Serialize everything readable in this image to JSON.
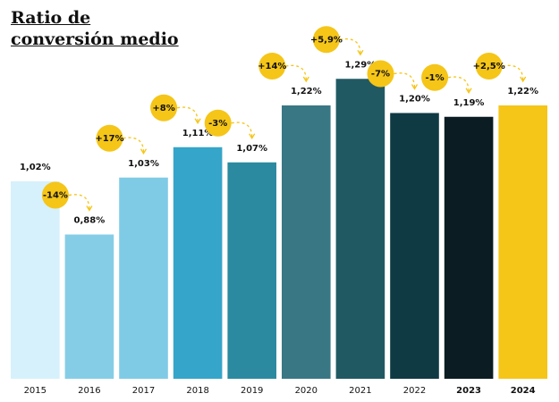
{
  "chart_data": {
    "type": "bar",
    "title": "Ratio de conversión medio",
    "categories": [
      "2015",
      "2016",
      "2017",
      "2018",
      "2019",
      "2020",
      "2021",
      "2022",
      "2023",
      "2024"
    ],
    "values": [
      1.02,
      0.88,
      1.03,
      1.11,
      1.07,
      1.22,
      1.29,
      1.2,
      1.19,
      1.22
    ],
    "value_labels": [
      "1,02%",
      "0,88%",
      "1,03%",
      "1,11%",
      "1,07%",
      "1,22%",
      "1,29%",
      "1,20%",
      "1,19%",
      "1,22%"
    ],
    "annotations": [
      null,
      "-14%",
      "+17%",
      "+8%",
      "-3%",
      "+14%",
      "+5,9%",
      "-7%",
      "-1%",
      "+2,5%"
    ],
    "colors": [
      "#d6f1fb",
      "#85cde6",
      "#7fcbe6",
      "#35a5c9",
      "#2b8aa0",
      "#397784",
      "#215963",
      "#0f3a44",
      "#0b1d22",
      "#f5c518"
    ],
    "annotation_color": "#f5c518",
    "ylim": [
      0.5,
      1.3
    ]
  }
}
